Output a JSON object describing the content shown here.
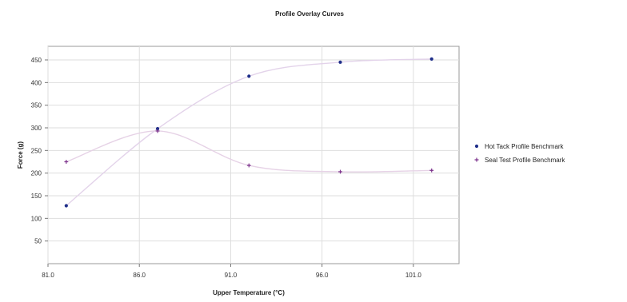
{
  "chart_data": {
    "type": "scatter",
    "title": "Profile Overlay Curves",
    "xlabel": "Upper Temperature (°C)",
    "ylabel": "Force (g)",
    "xlim": [
      81,
      103.5
    ],
    "ylim": [
      0,
      480
    ],
    "x_ticks": [
      81,
      86,
      91,
      96,
      101
    ],
    "x_tick_labels": [
      "81.0",
      "86.0",
      "91.0",
      "96.0",
      "101.0"
    ],
    "y_ticks": [
      50,
      100,
      150,
      200,
      250,
      300,
      350,
      400,
      450
    ],
    "y_tick_labels": [
      "50",
      "100",
      "150",
      "200",
      "250",
      "300",
      "350",
      "400",
      "450"
    ],
    "grid": true,
    "legend_position": "right",
    "series": [
      {
        "name": "Hot Tack Profile Benchmark",
        "color": "#1f2f8a",
        "line_color": "#e3d3ea",
        "marker": "dot",
        "x": [
          82.0,
          87.0,
          92.0,
          97.0,
          102.0
        ],
        "values": [
          128,
          298,
          414,
          445,
          452
        ]
      },
      {
        "name": "Seal Test Profile Benchmark",
        "color": "#7a2f8a",
        "line_color": "#e6d2e6",
        "marker": "plus",
        "x": [
          82.0,
          87.0,
          92.0,
          97.0,
          102.0
        ],
        "values": [
          225,
          293,
          217,
          203,
          206
        ]
      }
    ]
  }
}
